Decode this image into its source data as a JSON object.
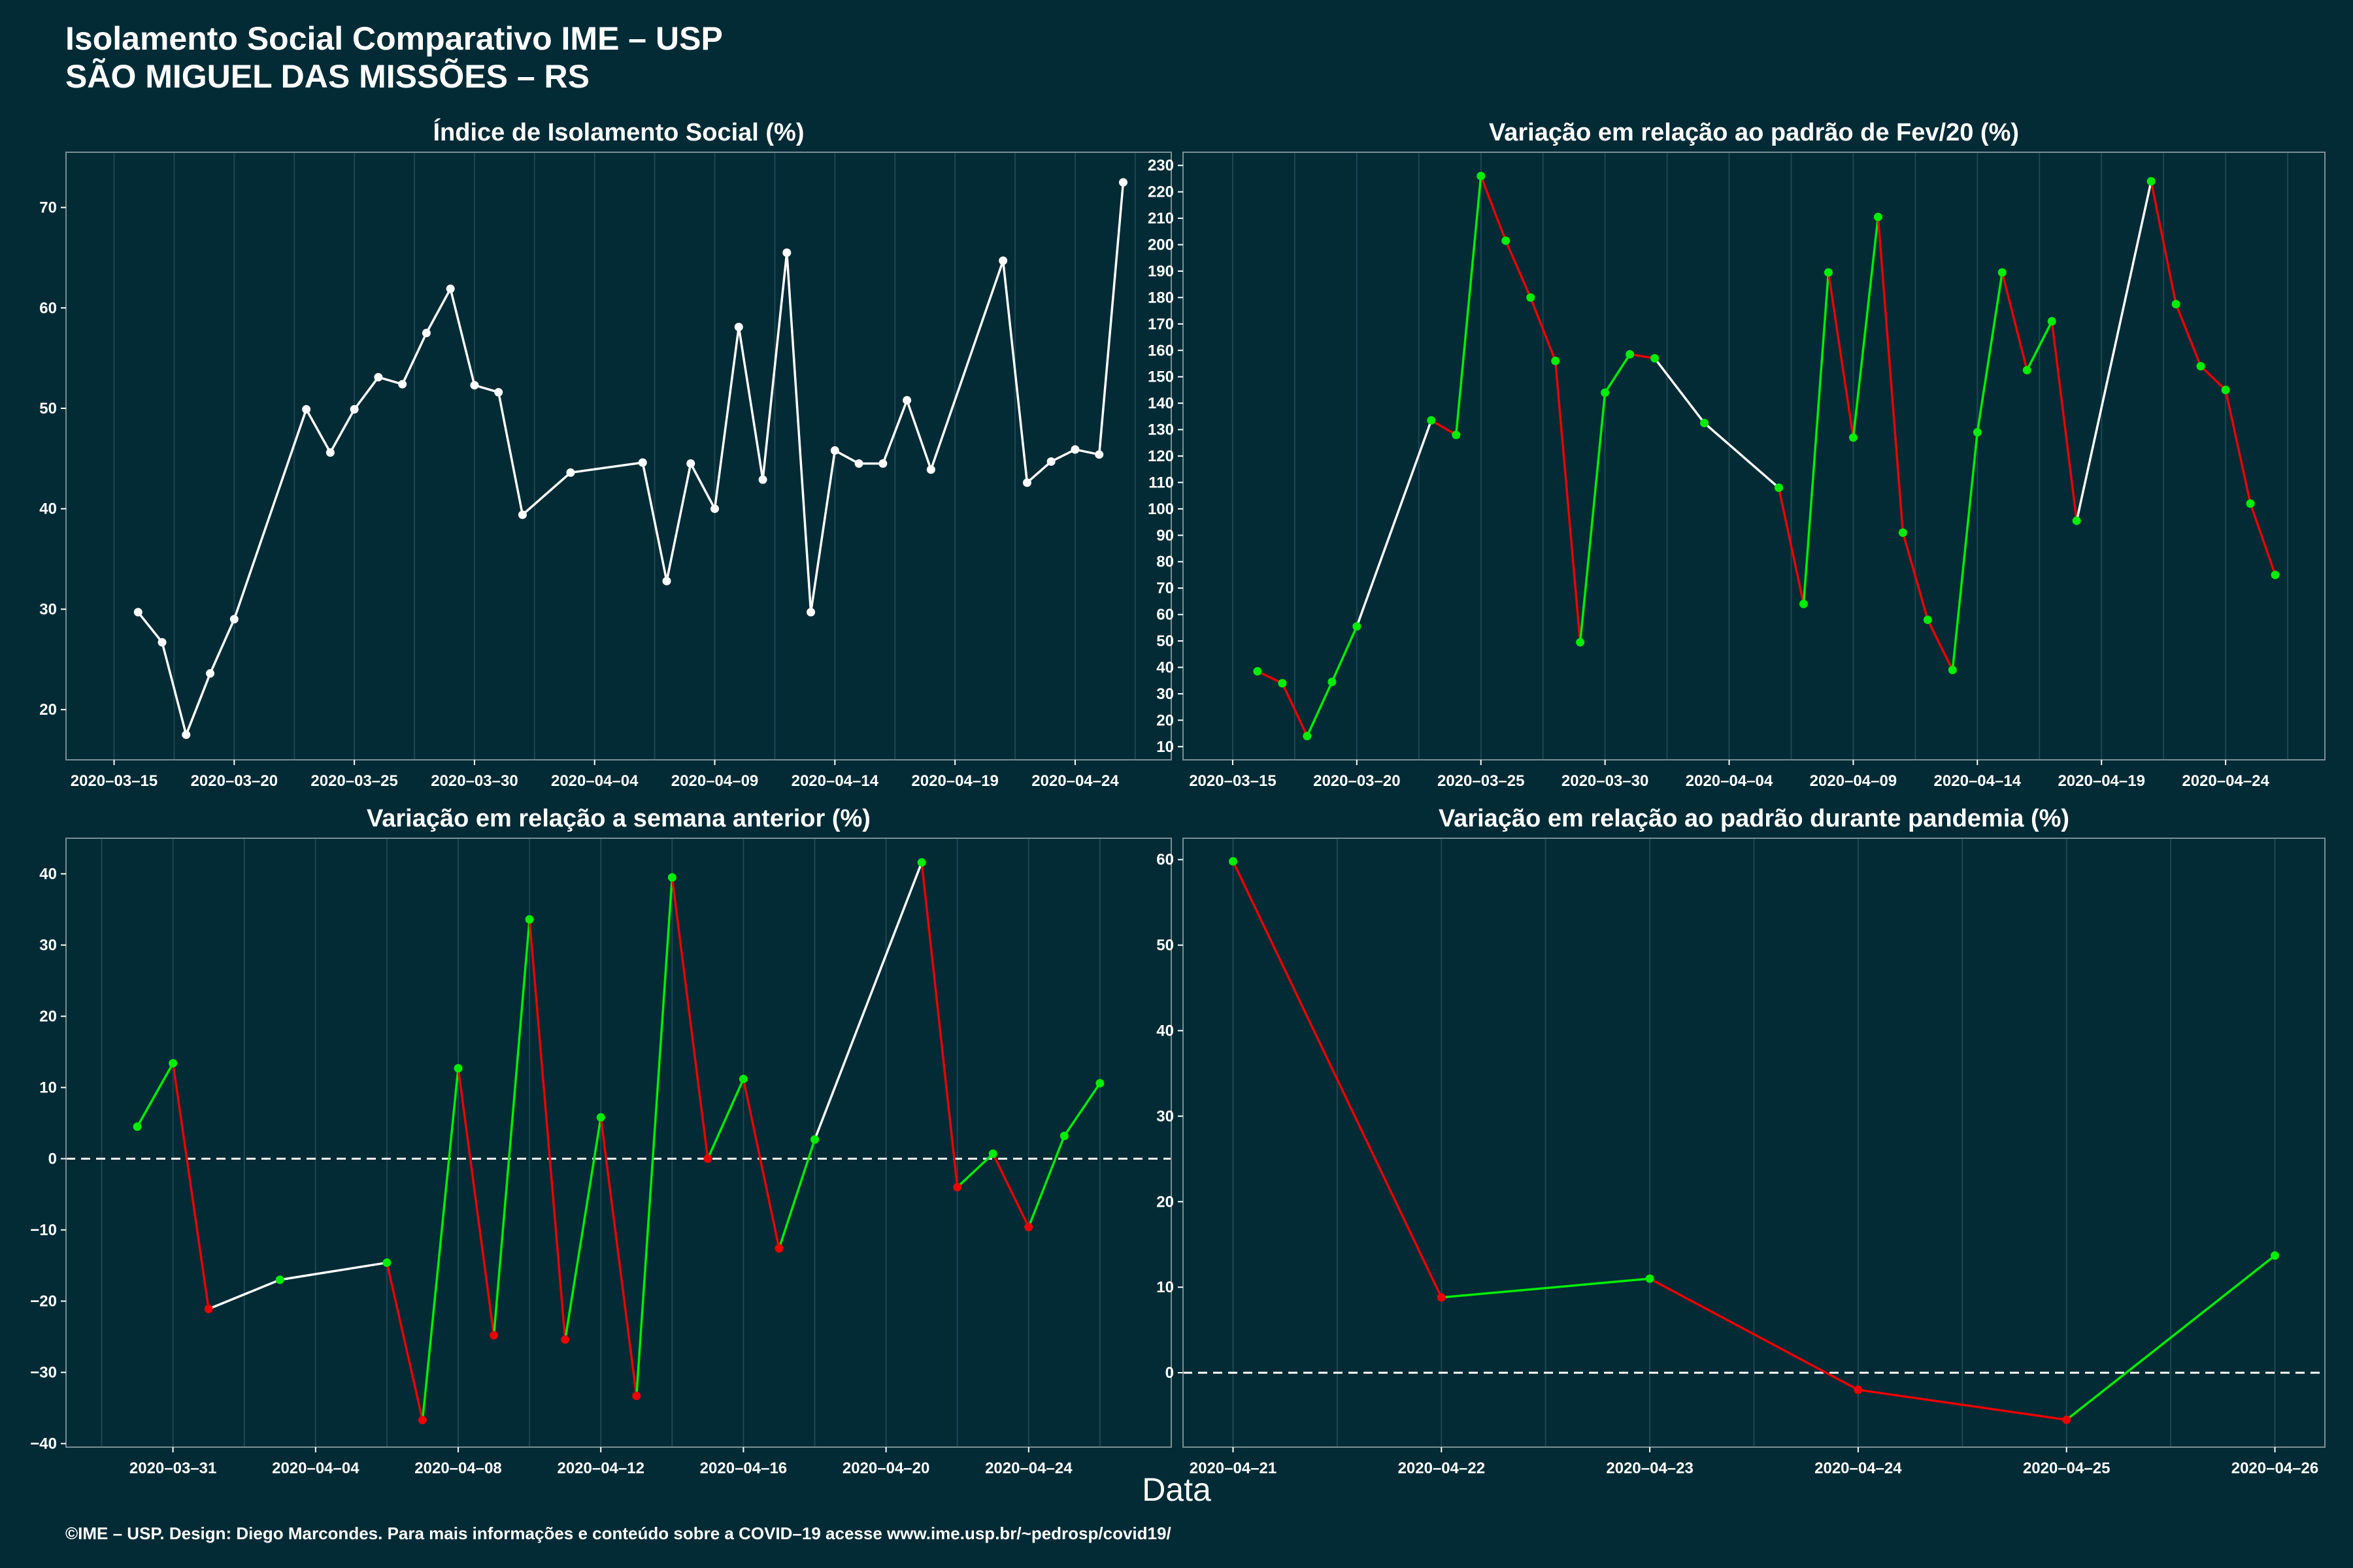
{
  "header": {
    "title": "Isolamento Social Comparativo IME – USP",
    "subtitle": "SÃO MIGUEL DAS MISSÕES – RS"
  },
  "xlabel": "Data",
  "caption": "©IME – USP. Design: Diego Marcondes. Para mais informações e conteúdo sobre a COVID–19 acesse www.ime.usp.br/~pedrosp/covid19/",
  "colors": {
    "background": "#022b36",
    "line_neutral": "#ffffff",
    "increase": "#00ee00",
    "decrease": "#ee0000",
    "grid": "#1d4752",
    "panel_border": "#7a8f95"
  },
  "chart_data": [
    {
      "type": "line",
      "title": "Índice de Isolamento Social (%)",
      "xlabel": "Data",
      "x_type": "date",
      "xlim": [
        "2020-03-13",
        "2020-04-28"
      ],
      "ylim": [
        15,
        75.5
      ],
      "x_ticks": [
        "2020-03-15",
        "2020-03-20",
        "2020-03-25",
        "2020-03-30",
        "2020-04-04",
        "2020-04-09",
        "2020-04-14",
        "2020-04-19",
        "2020-04-24"
      ],
      "y_ticks": [
        20,
        30,
        40,
        50,
        60,
        70
      ],
      "series": [
        {
          "x": [
            "2020-03-16",
            "2020-03-17",
            "2020-03-18",
            "2020-03-19",
            "2020-03-20",
            "2020-03-23",
            "2020-03-24",
            "2020-03-25",
            "2020-03-26",
            "2020-03-27",
            "2020-03-28",
            "2020-03-29",
            "2020-03-30",
            "2020-03-31",
            "2020-04-01",
            "2020-04-03",
            "2020-04-06",
            "2020-04-07",
            "2020-04-08",
            "2020-04-09",
            "2020-04-10",
            "2020-04-11",
            "2020-04-12",
            "2020-04-13",
            "2020-04-14",
            "2020-04-15",
            "2020-04-16",
            "2020-04-17",
            "2020-04-18",
            "2020-04-21",
            "2020-04-22",
            "2020-04-23",
            "2020-04-24",
            "2020-04-25",
            "2020-04-26"
          ],
          "y": [
            29.7,
            26.7,
            17.5,
            23.6,
            29.0,
            49.9,
            45.6,
            49.9,
            53.1,
            52.4,
            57.5,
            61.9,
            52.3,
            51.6,
            39.4,
            43.6,
            44.6,
            32.8,
            44.5,
            40.0,
            58.1,
            42.9,
            65.5,
            29.7,
            45.8,
            44.5,
            44.5,
            50.8,
            43.9,
            64.7,
            42.6,
            44.7,
            45.9,
            45.4,
            72.5
          ]
        }
      ],
      "grid": true,
      "legend": "none"
    },
    {
      "type": "line",
      "title": "Variação em relação ao padrão de Fev/20 (%)",
      "xlabel": "Data",
      "x_type": "date",
      "xlim": [
        "2020-03-13",
        "2020-04-28"
      ],
      "ylim": [
        5,
        235
      ],
      "x_ticks": [
        "2020-03-15",
        "2020-03-20",
        "2020-03-25",
        "2020-03-30",
        "2020-04-04",
        "2020-04-09",
        "2020-04-14",
        "2020-04-19",
        "2020-04-24"
      ],
      "y_ticks": [
        10,
        20,
        30,
        40,
        50,
        60,
        70,
        80,
        90,
        100,
        110,
        120,
        130,
        140,
        150,
        160,
        170,
        180,
        190,
        200,
        210,
        220,
        230
      ],
      "series": [
        {
          "x": [
            "2020-03-16",
            "2020-03-17",
            "2020-03-18",
            "2020-03-19",
            "2020-03-20",
            "2020-03-23",
            "2020-03-24",
            "2020-03-25",
            "2020-03-26",
            "2020-03-27",
            "2020-03-28",
            "2020-03-29",
            "2020-03-30",
            "2020-03-31",
            "2020-04-01",
            "2020-04-03",
            "2020-04-06",
            "2020-04-07",
            "2020-04-08",
            "2020-04-09",
            "2020-04-10",
            "2020-04-11",
            "2020-04-12",
            "2020-04-13",
            "2020-04-14",
            "2020-04-15",
            "2020-04-16",
            "2020-04-17",
            "2020-04-18",
            "2020-04-21",
            "2020-04-22",
            "2020-04-23",
            "2020-04-24",
            "2020-04-25",
            "2020-04-26"
          ],
          "y": [
            38.5,
            34.0,
            14.0,
            34.5,
            55.5,
            133.5,
            128.0,
            226.0,
            201.5,
            180.0,
            156.0,
            49.5,
            144.0,
            158.5,
            157.0,
            132.5,
            108.0,
            64.0,
            189.5,
            127.0,
            210.5,
            91.0,
            58.0,
            39.0,
            129.0,
            189.5,
            152.5,
            171.0,
            95.5,
            224.0,
            177.5,
            154.0,
            145.0,
            102.0,
            75.0
          ]
        }
      ],
      "grid": true,
      "legend": "none"
    },
    {
      "type": "line",
      "title": "Variação em relação a semana anterior (%)",
      "xlabel": "Data",
      "x_type": "date",
      "xlim": [
        "2020-03-28",
        "2020-04-28"
      ],
      "ylim": [
        -40.5,
        45
      ],
      "x_ticks": [
        "2020-03-31",
        "2020-04-04",
        "2020-04-08",
        "2020-04-12",
        "2020-04-16",
        "2020-04-20",
        "2020-04-24"
      ],
      "y_ticks": [
        -40,
        -30,
        -20,
        -10,
        0,
        10,
        20,
        30,
        40
      ],
      "reference_line": 0,
      "series": [
        {
          "x": [
            "2020-03-30",
            "2020-03-31",
            "2020-04-01",
            "2020-04-03",
            "2020-04-06",
            "2020-04-07",
            "2020-04-08",
            "2020-04-09",
            "2020-04-10",
            "2020-04-11",
            "2020-04-12",
            "2020-04-13",
            "2020-04-14",
            "2020-04-15",
            "2020-04-16",
            "2020-04-17",
            "2020-04-18",
            "2020-04-21",
            "2020-04-22",
            "2020-04-23",
            "2020-04-24",
            "2020-04-25",
            "2020-04-26"
          ],
          "y": [
            4.5,
            13.4,
            -21.1,
            -17.0,
            -14.6,
            -36.7,
            12.7,
            -24.8,
            33.6,
            -25.4,
            5.8,
            -33.3,
            39.5,
            0.0,
            11.2,
            -12.6,
            2.7,
            41.6,
            -4.0,
            0.7,
            -9.6,
            3.2,
            10.6
          ]
        }
      ],
      "grid": true,
      "legend": "none"
    },
    {
      "type": "line",
      "title": "Variação em relação ao padrão durante pandemia (%)",
      "xlabel": "Data",
      "x_type": "date",
      "xlim": [
        "2020-04-20.76",
        "2020-04-26.24"
      ],
      "ylim": [
        -8.7,
        62.5
      ],
      "x_ticks": [
        "2020-04-21",
        "2020-04-22",
        "2020-04-23",
        "2020-04-24",
        "2020-04-25",
        "2020-04-26"
      ],
      "y_ticks": [
        0,
        10,
        20,
        30,
        40,
        50,
        60
      ],
      "reference_line": 0,
      "series": [
        {
          "x": [
            "2020-04-21",
            "2020-04-22",
            "2020-04-23",
            "2020-04-24",
            "2020-04-25",
            "2020-04-26"
          ],
          "y": [
            59.8,
            8.8,
            11.0,
            -2.0,
            -5.5,
            13.7
          ]
        }
      ],
      "grid": true,
      "legend": "none"
    }
  ]
}
